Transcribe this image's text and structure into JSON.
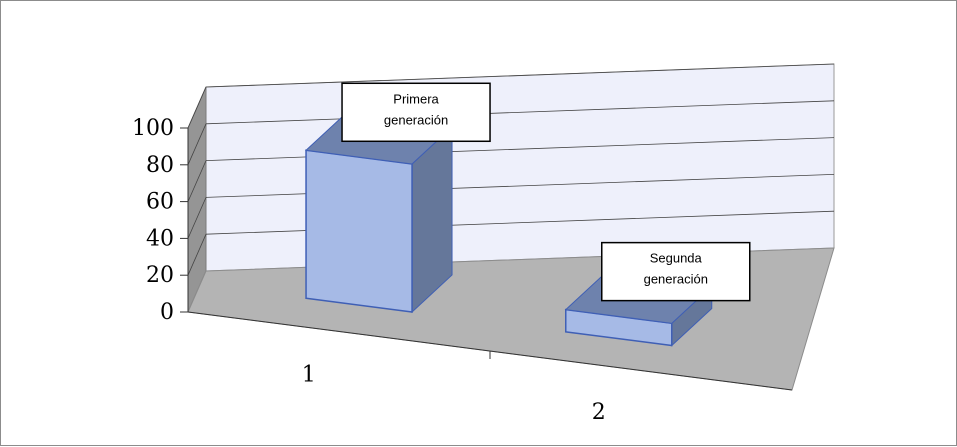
{
  "chart_data": {
    "type": "bar",
    "style": "3d-column",
    "categories": [
      "1",
      "2"
    ],
    "values": [
      80,
      12
    ],
    "ylim": [
      0,
      100
    ],
    "yticks": [
      0,
      20,
      40,
      60,
      80,
      100
    ],
    "grid": true,
    "annotations": [
      {
        "category": "1",
        "lines": [
          "Primera",
          "generación"
        ]
      },
      {
        "category": "2",
        "lines": [
          "Segunda",
          "generación"
        ]
      }
    ],
    "colors": {
      "bar_front": "#a6bae6",
      "bar_side": "#65779a",
      "bar_top": "#6e82ad",
      "bar_edge": "#3f5fb5",
      "back_wall": "#eef0fb",
      "side_wall": "#959595",
      "floor": "#b4b4b4"
    }
  }
}
